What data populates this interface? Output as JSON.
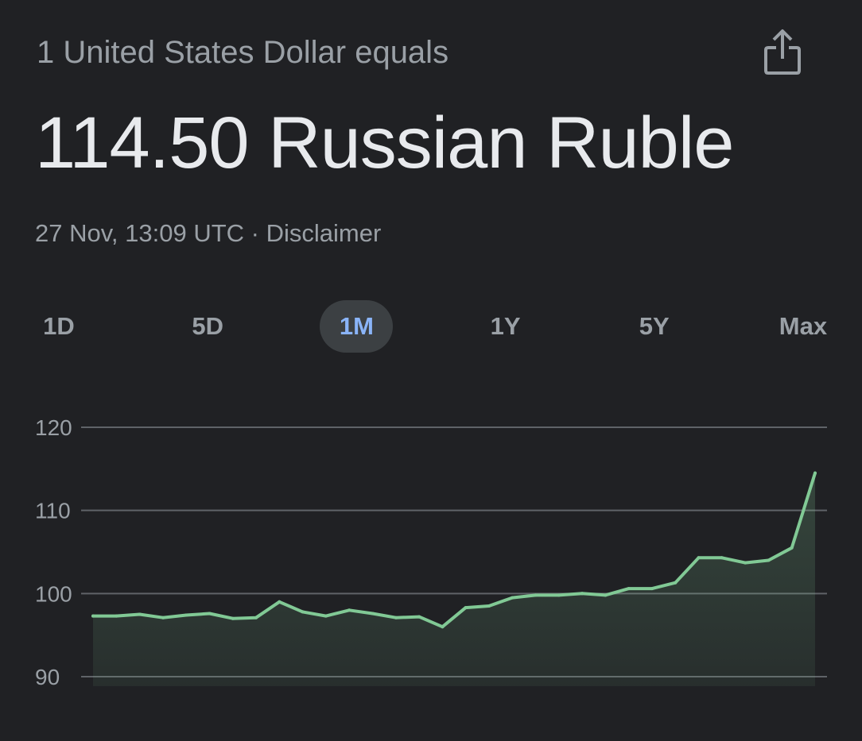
{
  "header": {
    "subtitle": "1 United States Dollar equals",
    "rate_text": "114.50 Russian Ruble",
    "timestamp": "27 Nov, 13:09 UTC",
    "separator": " · ",
    "disclaimer": "Disclaimer",
    "share_icon": "share-icon"
  },
  "tabs": [
    {
      "label": "1D",
      "active": false
    },
    {
      "label": "5D",
      "active": false
    },
    {
      "label": "1M",
      "active": true
    },
    {
      "label": "1Y",
      "active": false
    },
    {
      "label": "5Y",
      "active": false
    },
    {
      "label": "Max",
      "active": false
    }
  ],
  "colors": {
    "background": "#202124",
    "line": "#81c995",
    "active_tab_text": "#8ab4f8",
    "active_tab_bg": "#3c4043"
  },
  "chart_data": {
    "type": "area",
    "title": "",
    "xlabel": "",
    "ylabel": "",
    "ylim": [
      90,
      120
    ],
    "yticks": [
      120,
      110,
      100,
      90
    ],
    "grid": true,
    "series": [
      {
        "values": [
          97.3,
          97.3,
          97.5,
          97.1,
          97.4,
          97.6,
          97.0,
          97.1,
          99.0,
          97.8,
          97.3,
          98.0,
          97.6,
          97.1,
          97.2,
          96.0,
          98.3,
          98.5,
          99.5,
          99.8,
          99.8,
          100.0,
          99.8,
          100.6,
          100.6,
          101.3,
          104.3,
          104.3,
          103.7,
          104.0,
          105.5,
          114.5
        ]
      }
    ]
  }
}
